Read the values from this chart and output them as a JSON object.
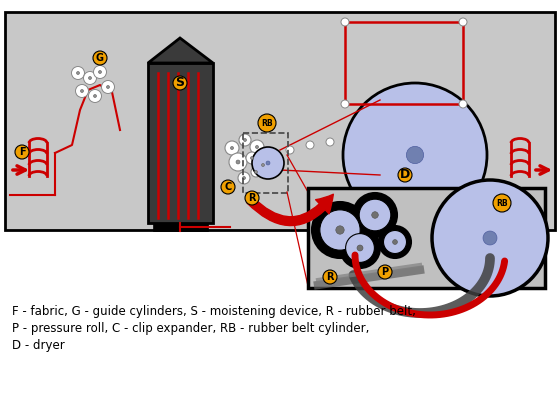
{
  "bg_color": "#c8c8c8",
  "white_bg": "#ffffff",
  "light_blue": "#b8c0e8",
  "dark_gray": "#3a3a3a",
  "mid_gray": "#606060",
  "red": "#cc0000",
  "orange_label": "#f0a000",
  "legend_line1": "F - fabric, G - guide cylinders, S - moistening device, R - rubber belt,",
  "legend_line2": "P - pressure roll, C - clip expander, RB - rubber belt cylinder,",
  "legend_line3": "D - dryer"
}
